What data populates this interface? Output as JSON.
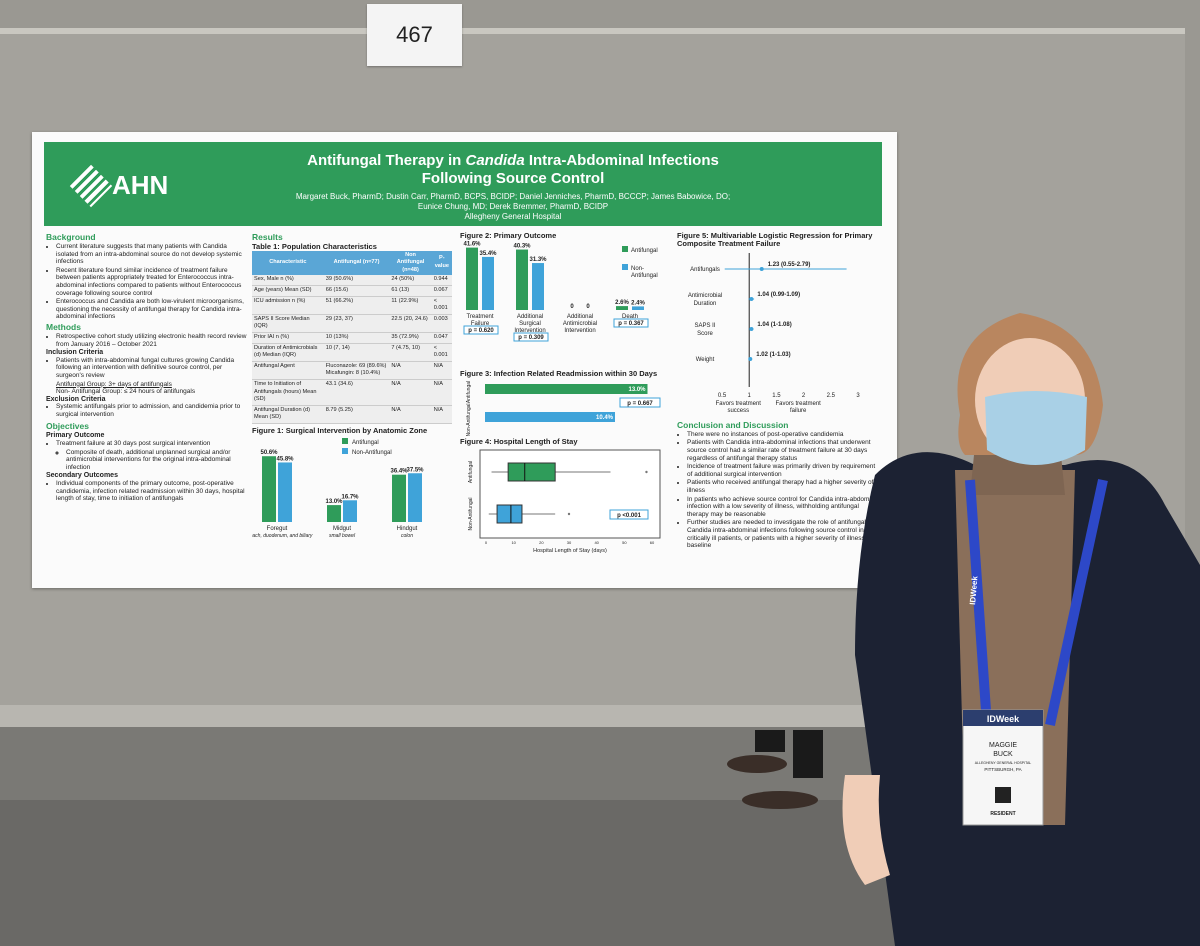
{
  "poster_number": "467",
  "poster": {
    "logo": "AHN",
    "title_line1a": "Antifungal Therapy in ",
    "title_italic": "Candida",
    "title_line1b": " Intra-Abdominal Infections",
    "title_line2": "Following Source Control",
    "authors_line1": "Margaret Buck, PharmD; Dustin Carr, PharmD, BCPS, BCIDP; Daniel Jenniches, PharmD, BCCCP; James Babowice, DO;",
    "authors_line2": "Eunice Chung, MD; Derek Bremmer, PharmD, BCIDP",
    "institution": "Allegheny General Hospital",
    "background": {
      "heading": "Background",
      "items": [
        "Current literature suggests that many patients with Candida isolated from an intra-abdominal source do not develop systemic infections",
        "Recent literature found similar incidence of treatment failure between patients appropriately treated for Enterococcus intra-abdominal infections compared to patients without Enterococcus coverage following source control",
        "Enterococcus and Candida are both low-virulent microorganisms, questioning the necessity of antifungal therapy for Candida intra-abdominal infections"
      ]
    },
    "methods": {
      "heading": "Methods",
      "items": [
        "Retrospective cohort study utilizing electronic health record review from January 2016 – October 2021"
      ],
      "inclusion_heading": "Inclusion Criteria",
      "inclusion_items": [
        "Patients with intra-abdominal fungal cultures growing Candida following an intervention with definitive source control, per surgeon's review"
      ],
      "group1": "Antifungal Group: 3+ days of antifungals",
      "group2": "Non- Antifungal Group: ≤ 24 hours of antifungals",
      "exclusion_heading": "Exclusion Criteria",
      "exclusion_items": [
        "Systemic antifungals prior to admission, and candidemia prior to surgical intervention"
      ]
    },
    "objectives": {
      "heading": "Objectives",
      "primary_heading": "Primary Outcome",
      "primary_items": [
        "Treatment failure at 30 days post surgical intervention"
      ],
      "primary_sub": "Composite of death, additional unplanned surgical and/or antimicrobial interventions for the original intra-abdominal infection",
      "secondary_heading": "Secondary Outcomes",
      "secondary_items": [
        "Individual components of the primary outcome, post-operative candidemia, infection related readmission within 30 days, hospital length of stay, time to initiation of antifungals"
      ]
    },
    "results": {
      "heading": "Results",
      "table_title": "Table 1: Population Characteristics",
      "table_headers": [
        "Characteristic",
        "Antifungal (n=77)",
        "Non Antifungal (n=48)",
        "P-value"
      ],
      "table_rows": [
        [
          "Sex, Male n (%)",
          "39 (50.6%)",
          "24 (50%)",
          "0.944"
        ],
        [
          "Age (years) Mean (SD)",
          "66 (15.6)",
          "61 (13)",
          "0.067"
        ],
        [
          "ICU admission n (%)",
          "51 (66.2%)",
          "11 (22.9%)",
          "< 0.001"
        ],
        [
          "SAPS II Score Median (IQR)",
          "29 (23, 37)",
          "22.5 (20, 24.6)",
          "0.003"
        ],
        [
          "Prior IAI n (%)",
          "10 (13%)",
          "35 (72.9%)",
          "0.047"
        ],
        [
          "Duration of Antimicrobials (d) Median (IQR)",
          "10 (7, 14)",
          "7 (4.75, 10)",
          "< 0.001"
        ],
        [
          "Antifungal Agent",
          "Fluconazole: 69 (89.6%) Micafungin: 8 (10.4%)",
          "N/A",
          "N/A"
        ],
        [
          "Time to Initiation of Antifungals (hours) Mean (SD)",
          "43.1 (34.6)",
          "N/A",
          "N/A"
        ],
        [
          "Antifungal Duration (d) Mean (SD)",
          "8.79 (5.25)",
          "N/A",
          "N/A"
        ]
      ]
    },
    "legend": {
      "antifungal": "Antifungal",
      "non_antifungal": "Non-Antifungal",
      "non_antifungal_split": "Non-\nAntifungal"
    },
    "colors": {
      "green": "#2f9c5a",
      "blue": "#3fa3d9"
    }
  },
  "chart_data": [
    {
      "type": "bar",
      "title": "Figure 1: Surgical Intervention by Anatomic Zone",
      "categories": [
        "Foregut",
        "Midgut",
        "Hindgut"
      ],
      "subcategories": [
        "stomach, duodenum, and biliary",
        "small bowel",
        "colon"
      ],
      "series": [
        {
          "name": "Antifungal",
          "values": [
            50.6,
            13.0,
            36.4
          ]
        },
        {
          "name": "Non-Antifungal",
          "values": [
            45.8,
            16.7,
            37.5
          ]
        }
      ],
      "labels": [
        [
          "50.6%",
          "45.8%"
        ],
        [
          "13.0%",
          "16.7%"
        ],
        [
          "36.4%",
          "37.5%"
        ]
      ]
    },
    {
      "type": "bar",
      "title": "Figure 2: Primary Outcome",
      "categories": [
        "Treatment Failure",
        "Additional Surgical Intervention",
        "Additional Antimicrobial Intervention",
        "Death"
      ],
      "series": [
        {
          "name": "Antifungal",
          "values": [
            41.6,
            40.3,
            0,
            2.6
          ]
        },
        {
          "name": "Non-Antifungal",
          "values": [
            35.4,
            31.3,
            0,
            2.4
          ]
        }
      ],
      "labels": [
        [
          "41.6%",
          "35.4%"
        ],
        [
          "40.3%",
          "31.3%"
        ],
        [
          "0",
          "0"
        ],
        [
          "2.6%",
          "2.4%"
        ]
      ],
      "pvalues": [
        "p = 0.620",
        "p = 0.309",
        "",
        "p = 0.367"
      ]
    },
    {
      "type": "bar",
      "orientation": "horizontal",
      "title": "Figure 3: Infection Related Readmission within 30 Days",
      "categories": [
        "Antifungal",
        "Non-Antifungal"
      ],
      "values": [
        13.0,
        10.4
      ],
      "labels": [
        "13.0%",
        "10.4%"
      ],
      "pvalue": "p = 0.667"
    },
    {
      "type": "boxplot",
      "title": "Figure 4: Hospital Length of Stay",
      "categories": [
        "Antifungal",
        "Non-Antifungal"
      ],
      "xlabel": "Hospital Length of Stay (days)",
      "xticks": [
        "0",
        "10",
        "20",
        "30",
        "40",
        "50",
        "60"
      ],
      "xlim": [
        0,
        60
      ],
      "boxes": [
        {
          "min": 2,
          "q1": 8,
          "median": 14,
          "q3": 25,
          "max": 45,
          "outliers": [
            58
          ]
        },
        {
          "min": 1,
          "q1": 4,
          "median": 9,
          "q3": 13,
          "max": 25,
          "outliers": [
            30
          ]
        }
      ],
      "pvalue": "p <0.001"
    },
    {
      "type": "forest",
      "title": "Figure 5: Multivariable Logistic Regression for Primary Composite Treatment Failure",
      "categories": [
        "Antifungals",
        "Antimicrobial Duration",
        "SAPS II Score",
        "Weight"
      ],
      "estimates": [
        1.23,
        1.04,
        1.04,
        1.02
      ],
      "ci": [
        [
          0.55,
          2.79
        ],
        [
          0.99,
          1.09
        ],
        [
          1.0,
          1.08
        ],
        [
          1.0,
          1.03
        ]
      ],
      "labels": [
        "1.23 (0.55-2.79)",
        "1.04 (0.99-1.09)",
        "1.04 (1-1.08)",
        "1.02 (1-1.03)"
      ],
      "xticks": [
        "0.5",
        "1",
        "1.5",
        "2",
        "2.5",
        "3"
      ],
      "xlim": [
        0.5,
        3
      ],
      "left_label": "Favors treatment success",
      "right_label": "Favors treatment failure"
    }
  ],
  "conclusion": {
    "heading": "Conclusion and Discussion",
    "items": [
      "There were no instances of post-operative candidemia",
      "Patients with Candida intra-abdominal infections that underwent source control had a similar rate of treatment failure at 30 days regardless of antifungal therapy status",
      "Incidence of treatment failure was primarily driven by requirement of additional surgical intervention",
      "Patients who received antifungal therapy had a higher severity of illness",
      "In patients who achieve source control for Candida intra-abdominal infection with a low severity of illness, withholding antifungal therapy may be reasonable",
      "Further studies are needed to investigate the role of antifungals in Candida intra-abdominal infections following source control in critically ill patients, or patients with a higher severity of illness at baseline"
    ]
  },
  "badge": {
    "event": "IDWeek",
    "lanyard": "IDWeek",
    "first": "MAGGIE",
    "last": "BUCK",
    "org": "ALLEGHENY GENERAL HOSPITAL",
    "city": "PITTSBURGH, PA",
    "role": "RESIDENT"
  }
}
